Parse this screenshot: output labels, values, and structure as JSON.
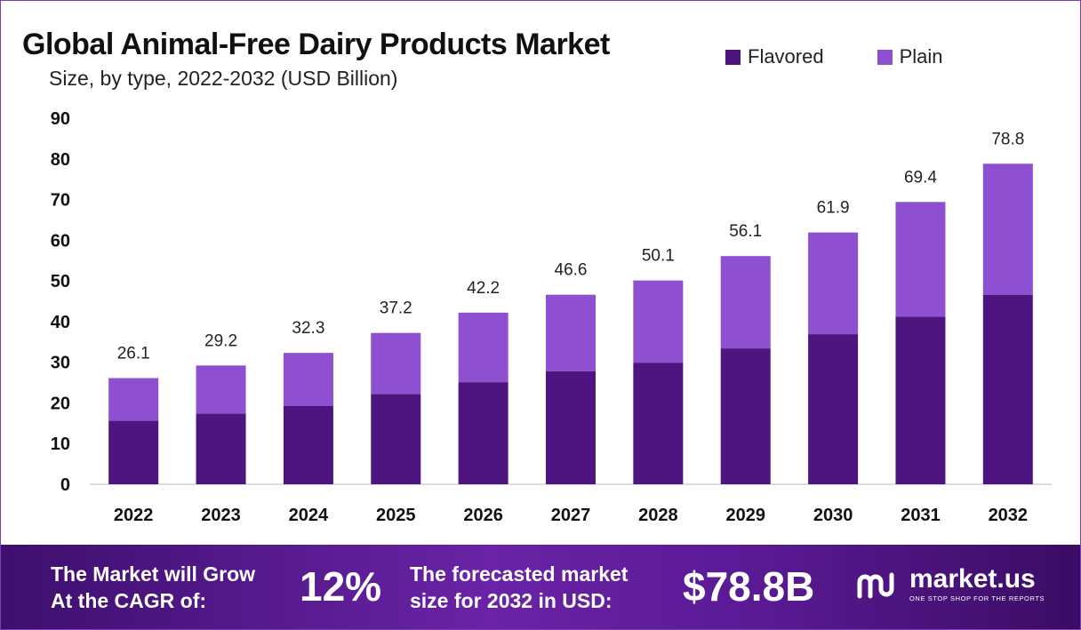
{
  "chart_data": {
    "type": "bar",
    "stacked": true,
    "title": "Global Animal-Free Dairy Products Market",
    "subtitle": "Size, by type, 2022-2032 (USD Billion)",
    "categories": [
      "2022",
      "2023",
      "2024",
      "2025",
      "2026",
      "2027",
      "2028",
      "2029",
      "2030",
      "2031",
      "2032"
    ],
    "series": [
      {
        "name": "Flavored",
        "color": "#4e1580",
        "values": [
          15.6,
          17.4,
          19.3,
          22.2,
          25.1,
          27.8,
          29.9,
          33.4,
          36.9,
          41.2,
          46.6
        ]
      },
      {
        "name": "Plain",
        "color": "#8e4fd0",
        "values": [
          10.5,
          11.8,
          13.0,
          15.0,
          17.1,
          18.8,
          20.2,
          22.7,
          25.0,
          28.2,
          32.2
        ]
      }
    ],
    "totals": [
      "26.1",
      "29.2",
      "32.3",
      "37.2",
      "42.2",
      "46.6",
      "50.1",
      "56.1",
      "61.9",
      "69.4",
      "78.8"
    ],
    "yticks": [
      "0",
      "10",
      "20",
      "30",
      "40",
      "50",
      "60",
      "70",
      "80",
      "90"
    ],
    "ylim": [
      0,
      90
    ],
    "legend_position": "top-right",
    "grid": false
  },
  "footer": {
    "cagr_label_1": "The Market will Grow",
    "cagr_label_2": "At the CAGR of:",
    "cagr_value": "12%",
    "forecast_label_1": "The forecasted market",
    "forecast_label_2": "size for 2032 in USD:",
    "forecast_value": "$78.8B",
    "brand_name": "market.us",
    "brand_tagline": "ONE STOP SHOP FOR THE REPORTS"
  },
  "colors": {
    "flavored": "#4e1580",
    "plain": "#8e4fd0",
    "footer_bg": "#5a1a94"
  }
}
